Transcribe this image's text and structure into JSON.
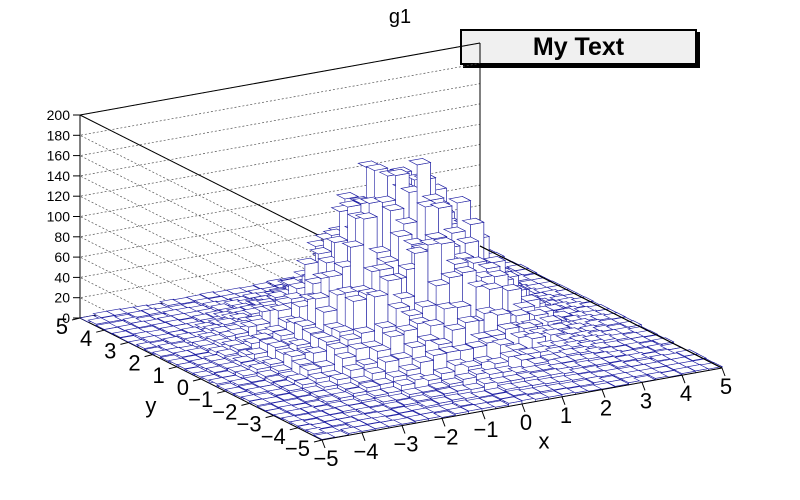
{
  "chart_data": {
    "type": "lego3d",
    "title": "g1",
    "annotation": "My Text",
    "xlabel": "x",
    "ylabel": "y",
    "xlim": [
      -5,
      5
    ],
    "ylim": [
      -5,
      5
    ],
    "zlim": [
      0,
      200
    ],
    "x_ticks": [
      "−5",
      "−4",
      "−3",
      "−2",
      "−1",
      "0",
      "1",
      "2",
      "3",
      "4",
      "5"
    ],
    "y_ticks": [
      "−5",
      "−4",
      "−3",
      "−2",
      "−1",
      "0",
      "1",
      "2",
      "3",
      "4",
      "5"
    ],
    "z_ticks": [
      "0",
      "20",
      "40",
      "60",
      "80",
      "100",
      "120",
      "140",
      "160",
      "180",
      "200"
    ],
    "bins_x": 30,
    "bins_y": 30,
    "distribution": "2D Gaussian, mean (0,0), sigma ~1.5, peak ~160",
    "peak": 160,
    "grid": true,
    "bar_edge_color": "#1a1aa0",
    "bar_face_color": "#ffffff"
  }
}
